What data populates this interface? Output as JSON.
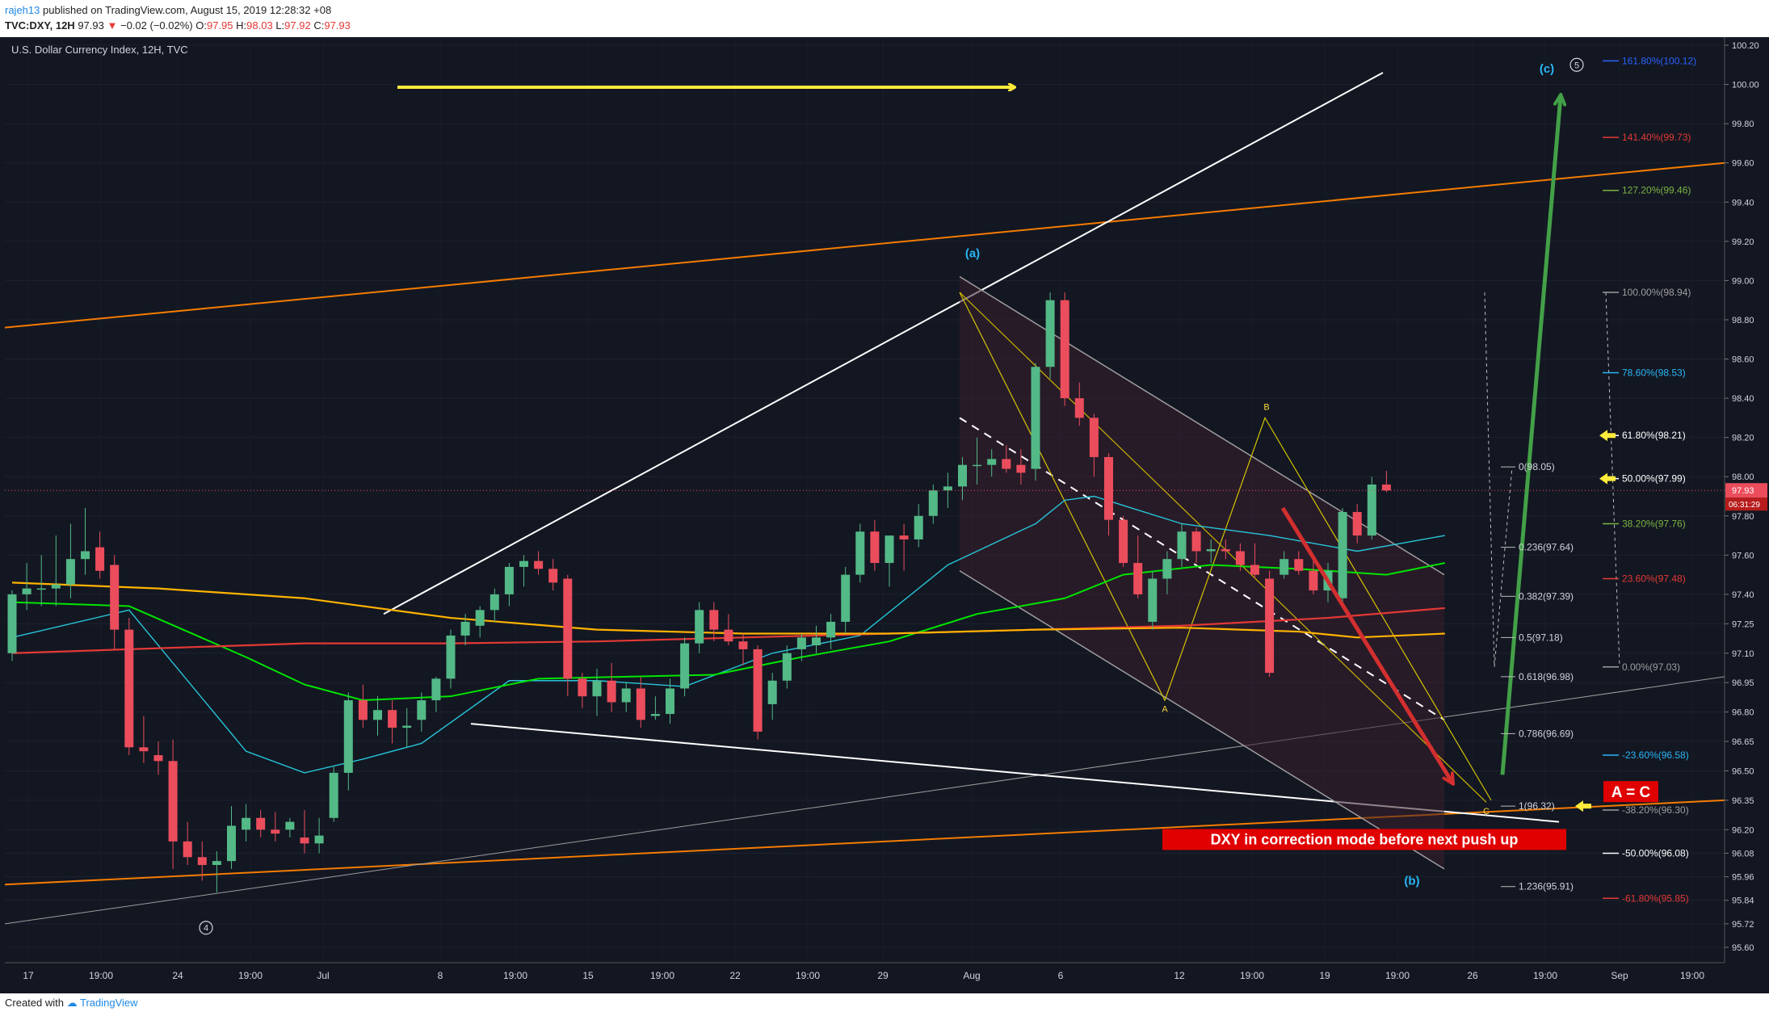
{
  "header": {
    "author": "rajeh13",
    "published": "published on TradingView.com, August 15, 2019 12:28:32 +08",
    "symbol": "TVC:DXY, 12H",
    "last": "97.93",
    "change": "−0.02 (−0.02%)",
    "o_label": "O:",
    "o": "97.95",
    "h_label": "H:",
    "h": "98.03",
    "l_label": "L:",
    "l": "97.92",
    "c_label": "C:",
    "c": "97.93"
  },
  "footer": {
    "created_with": "Created with",
    "brand": "TradingView"
  },
  "chart_data": {
    "type": "candlestick",
    "title": "U.S. Dollar Currency Index, 12H, TVC",
    "ylim": [
      95.6,
      100.2
    ],
    "y_ticks": [
      "100.20",
      "100.00",
      "99.80",
      "99.60",
      "99.40",
      "99.20",
      "99.00",
      "98.80",
      "98.60",
      "98.40",
      "98.20",
      "98.00",
      "97.80",
      "97.60",
      "97.40",
      "97.25",
      "97.10",
      "96.95",
      "96.80",
      "96.65",
      "96.50",
      "96.35",
      "96.20",
      "96.08",
      "95.96",
      "95.84",
      "95.72",
      "95.60"
    ],
    "x_ticks": [
      "17",
      "19:00",
      "24",
      "19:00",
      "Jul",
      "8",
      "19:00",
      "15",
      "19:00",
      "22",
      "19:00",
      "29",
      "Aug",
      "6",
      "12",
      "19:00",
      "19",
      "19:00",
      "26",
      "19:00",
      "Sep",
      "19:00"
    ],
    "price_marker": {
      "value": 97.93,
      "label": "97.93",
      "countdown": "06:31:29"
    },
    "candles": [
      {
        "o": 97.1,
        "h": 97.42,
        "l": 97.06,
        "c": 97.4
      },
      {
        "o": 97.4,
        "h": 97.56,
        "l": 97.32,
        "c": 97.43
      },
      {
        "o": 97.43,
        "h": 97.6,
        "l": 97.34,
        "c": 97.43
      },
      {
        "o": 97.43,
        "h": 97.7,
        "l": 97.34,
        "c": 97.45
      },
      {
        "o": 97.45,
        "h": 97.76,
        "l": 97.38,
        "c": 97.58
      },
      {
        "o": 97.58,
        "h": 97.84,
        "l": 97.5,
        "c": 97.62
      },
      {
        "o": 97.64,
        "h": 97.72,
        "l": 97.48,
        "c": 97.52
      },
      {
        "o": 97.55,
        "h": 97.6,
        "l": 97.12,
        "c": 97.22
      },
      {
        "o": 97.22,
        "h": 97.28,
        "l": 96.58,
        "c": 96.62
      },
      {
        "o": 96.62,
        "h": 96.78,
        "l": 96.54,
        "c": 96.6
      },
      {
        "o": 96.58,
        "h": 96.65,
        "l": 96.48,
        "c": 96.55
      },
      {
        "o": 96.55,
        "h": 96.66,
        "l": 96.0,
        "c": 96.14
      },
      {
        "o": 96.14,
        "h": 96.24,
        "l": 96.02,
        "c": 96.06
      },
      {
        "o": 96.06,
        "h": 96.14,
        "l": 95.94,
        "c": 96.02
      },
      {
        "o": 96.02,
        "h": 96.09,
        "l": 95.88,
        "c": 96.04
      },
      {
        "o": 96.04,
        "h": 96.32,
        "l": 96.0,
        "c": 96.22
      },
      {
        "o": 96.2,
        "h": 96.33,
        "l": 96.14,
        "c": 96.26
      },
      {
        "o": 96.26,
        "h": 96.3,
        "l": 96.16,
        "c": 96.2
      },
      {
        "o": 96.2,
        "h": 96.29,
        "l": 96.14,
        "c": 96.18
      },
      {
        "o": 96.2,
        "h": 96.26,
        "l": 96.16,
        "c": 96.24
      },
      {
        "o": 96.16,
        "h": 96.3,
        "l": 96.08,
        "c": 96.13
      },
      {
        "o": 96.13,
        "h": 96.26,
        "l": 96.08,
        "c": 96.17
      },
      {
        "o": 96.26,
        "h": 96.52,
        "l": 96.24,
        "c": 96.49
      },
      {
        "o": 96.49,
        "h": 96.9,
        "l": 96.4,
        "c": 96.86
      },
      {
        "o": 96.86,
        "h": 96.94,
        "l": 96.72,
        "c": 96.76
      },
      {
        "o": 96.76,
        "h": 96.88,
        "l": 96.68,
        "c": 96.81
      },
      {
        "o": 96.81,
        "h": 96.86,
        "l": 96.64,
        "c": 96.72
      },
      {
        "o": 96.72,
        "h": 96.82,
        "l": 96.62,
        "c": 96.73
      },
      {
        "o": 96.76,
        "h": 96.9,
        "l": 96.7,
        "c": 96.86
      },
      {
        "o": 96.86,
        "h": 96.98,
        "l": 96.8,
        "c": 96.97
      },
      {
        "o": 96.97,
        "h": 97.22,
        "l": 96.92,
        "c": 97.19
      },
      {
        "o": 97.19,
        "h": 97.3,
        "l": 97.14,
        "c": 97.26
      },
      {
        "o": 97.24,
        "h": 97.34,
        "l": 97.18,
        "c": 97.32
      },
      {
        "o": 97.32,
        "h": 97.43,
        "l": 97.26,
        "c": 97.4
      },
      {
        "o": 97.4,
        "h": 97.56,
        "l": 97.34,
        "c": 97.54
      },
      {
        "o": 97.54,
        "h": 97.6,
        "l": 97.44,
        "c": 97.57
      },
      {
        "o": 97.57,
        "h": 97.62,
        "l": 97.5,
        "c": 97.53
      },
      {
        "o": 97.53,
        "h": 97.58,
        "l": 97.42,
        "c": 97.46
      },
      {
        "o": 97.48,
        "h": 97.5,
        "l": 96.88,
        "c": 96.97
      },
      {
        "o": 96.97,
        "h": 97.0,
        "l": 96.82,
        "c": 96.88
      },
      {
        "o": 96.88,
        "h": 97.02,
        "l": 96.78,
        "c": 96.96
      },
      {
        "o": 96.96,
        "h": 97.05,
        "l": 96.8,
        "c": 96.85
      },
      {
        "o": 96.85,
        "h": 96.95,
        "l": 96.8,
        "c": 96.92
      },
      {
        "o": 96.92,
        "h": 96.98,
        "l": 96.72,
        "c": 96.76
      },
      {
        "o": 96.78,
        "h": 96.88,
        "l": 96.76,
        "c": 96.79
      },
      {
        "o": 96.79,
        "h": 96.97,
        "l": 96.74,
        "c": 96.92
      },
      {
        "o": 96.92,
        "h": 97.18,
        "l": 96.88,
        "c": 97.15
      },
      {
        "o": 97.15,
        "h": 97.36,
        "l": 97.1,
        "c": 97.32
      },
      {
        "o": 97.32,
        "h": 97.36,
        "l": 97.16,
        "c": 97.22
      },
      {
        "o": 97.22,
        "h": 97.3,
        "l": 97.14,
        "c": 97.16
      },
      {
        "o": 97.16,
        "h": 97.2,
        "l": 97.04,
        "c": 97.12
      },
      {
        "o": 97.12,
        "h": 97.14,
        "l": 96.66,
        "c": 96.7
      },
      {
        "o": 96.84,
        "h": 97.0,
        "l": 96.76,
        "c": 96.96
      },
      {
        "o": 96.96,
        "h": 97.14,
        "l": 96.92,
        "c": 97.1
      },
      {
        "o": 97.12,
        "h": 97.2,
        "l": 97.06,
        "c": 97.18
      },
      {
        "o": 97.14,
        "h": 97.24,
        "l": 97.1,
        "c": 97.18
      },
      {
        "o": 97.18,
        "h": 97.3,
        "l": 97.12,
        "c": 97.26
      },
      {
        "o": 97.26,
        "h": 97.54,
        "l": 97.2,
        "c": 97.5
      },
      {
        "o": 97.5,
        "h": 97.76,
        "l": 97.46,
        "c": 97.72
      },
      {
        "o": 97.72,
        "h": 97.78,
        "l": 97.52,
        "c": 97.56
      },
      {
        "o": 97.56,
        "h": 97.68,
        "l": 97.44,
        "c": 97.7
      },
      {
        "o": 97.7,
        "h": 97.76,
        "l": 97.52,
        "c": 97.68
      },
      {
        "o": 97.68,
        "h": 97.86,
        "l": 97.64,
        "c": 97.8
      },
      {
        "o": 97.8,
        "h": 97.96,
        "l": 97.76,
        "c": 97.93
      },
      {
        "o": 97.93,
        "h": 98.02,
        "l": 97.84,
        "c": 97.95
      },
      {
        "o": 97.95,
        "h": 98.1,
        "l": 97.88,
        "c": 98.06
      },
      {
        "o": 98.06,
        "h": 98.2,
        "l": 97.96,
        "c": 98.06
      },
      {
        "o": 98.06,
        "h": 98.14,
        "l": 98.0,
        "c": 98.09
      },
      {
        "o": 98.09,
        "h": 98.16,
        "l": 98.02,
        "c": 98.04
      },
      {
        "o": 98.06,
        "h": 98.14,
        "l": 97.96,
        "c": 98.02
      },
      {
        "o": 98.04,
        "h": 98.58,
        "l": 97.98,
        "c": 98.56
      },
      {
        "o": 98.56,
        "h": 98.94,
        "l": 98.5,
        "c": 98.9
      },
      {
        "o": 98.9,
        "h": 98.94,
        "l": 98.36,
        "c": 98.4
      },
      {
        "o": 98.4,
        "h": 98.48,
        "l": 98.26,
        "c": 98.3
      },
      {
        "o": 98.3,
        "h": 98.32,
        "l": 98.0,
        "c": 98.1
      },
      {
        "o": 98.1,
        "h": 98.12,
        "l": 97.7,
        "c": 97.78
      },
      {
        "o": 97.78,
        "h": 97.8,
        "l": 97.54,
        "c": 97.56
      },
      {
        "o": 97.56,
        "h": 97.7,
        "l": 97.38,
        "c": 97.4
      },
      {
        "o": 97.26,
        "h": 97.52,
        "l": 97.22,
        "c": 97.48
      },
      {
        "o": 97.48,
        "h": 97.62,
        "l": 97.4,
        "c": 97.58
      },
      {
        "o": 97.58,
        "h": 97.76,
        "l": 97.54,
        "c": 97.72
      },
      {
        "o": 97.72,
        "h": 97.74,
        "l": 97.56,
        "c": 97.62
      },
      {
        "o": 97.62,
        "h": 97.68,
        "l": 97.56,
        "c": 97.63
      },
      {
        "o": 97.63,
        "h": 97.68,
        "l": 97.58,
        "c": 97.62
      },
      {
        "o": 97.62,
        "h": 97.66,
        "l": 97.52,
        "c": 97.55
      },
      {
        "o": 97.55,
        "h": 97.66,
        "l": 97.48,
        "c": 97.5
      },
      {
        "o": 97.48,
        "h": 97.52,
        "l": 96.98,
        "c": 97.0
      },
      {
        "o": 97.5,
        "h": 97.62,
        "l": 97.48,
        "c": 97.58
      },
      {
        "o": 97.58,
        "h": 97.62,
        "l": 97.5,
        "c": 97.52
      },
      {
        "o": 97.52,
        "h": 97.6,
        "l": 97.4,
        "c": 97.42
      },
      {
        "o": 97.42,
        "h": 97.56,
        "l": 97.36,
        "c": 97.52
      },
      {
        "o": 97.38,
        "h": 97.84,
        "l": 97.34,
        "c": 97.82
      },
      {
        "o": 97.82,
        "h": 97.86,
        "l": 97.66,
        "c": 97.7
      },
      {
        "o": 97.7,
        "h": 98.0,
        "l": 97.68,
        "c": 97.96
      },
      {
        "o": 97.96,
        "h": 98.03,
        "l": 97.92,
        "c": 97.93
      }
    ],
    "moving_averages": [
      {
        "key": "cyan",
        "points": [
          [
            0,
            97.18
          ],
          [
            8,
            97.32
          ],
          [
            16,
            96.6
          ],
          [
            20,
            96.49
          ],
          [
            24,
            96.56
          ],
          [
            28,
            96.64
          ],
          [
            34,
            96.96
          ],
          [
            40,
            96.96
          ],
          [
            46,
            96.93
          ],
          [
            52,
            97.1
          ],
          [
            58,
            97.19
          ],
          [
            64,
            97.55
          ],
          [
            70,
            97.76
          ],
          [
            72,
            97.88
          ],
          [
            74,
            97.9
          ],
          [
            80,
            97.76
          ],
          [
            86,
            97.7
          ],
          [
            92,
            97.62
          ],
          [
            98,
            97.7
          ]
        ]
      },
      {
        "key": "green",
        "points": [
          [
            0,
            97.36
          ],
          [
            8,
            97.34
          ],
          [
            16,
            97.08
          ],
          [
            20,
            96.94
          ],
          [
            24,
            96.86
          ],
          [
            30,
            96.88
          ],
          [
            36,
            96.97
          ],
          [
            42,
            96.98
          ],
          [
            48,
            96.99
          ],
          [
            54,
            97.08
          ],
          [
            60,
            97.16
          ],
          [
            66,
            97.3
          ],
          [
            72,
            97.38
          ],
          [
            76,
            97.5
          ],
          [
            82,
            97.55
          ],
          [
            88,
            97.53
          ],
          [
            94,
            97.5
          ],
          [
            98,
            97.56
          ]
        ]
      },
      {
        "key": "red",
        "points": [
          [
            0,
            97.1
          ],
          [
            8,
            97.12
          ],
          [
            20,
            97.15
          ],
          [
            30,
            97.15
          ],
          [
            40,
            97.16
          ],
          [
            50,
            97.18
          ],
          [
            60,
            97.2
          ],
          [
            70,
            97.22
          ],
          [
            80,
            97.24
          ],
          [
            90,
            97.28
          ],
          [
            98,
            97.33
          ]
        ]
      },
      {
        "key": "orange",
        "points": [
          [
            0,
            97.46
          ],
          [
            10,
            97.43
          ],
          [
            20,
            97.38
          ],
          [
            30,
            97.28
          ],
          [
            40,
            97.22
          ],
          [
            50,
            97.2
          ],
          [
            60,
            97.2
          ],
          [
            70,
            97.22
          ],
          [
            80,
            97.23
          ],
          [
            88,
            97.21
          ],
          [
            92,
            97.18
          ],
          [
            98,
            97.2
          ]
        ]
      }
    ],
    "fib_left": [
      {
        "label": "0(98.05)",
        "value": 98.05
      },
      {
        "label": "0.236(97.64)",
        "value": 97.64
      },
      {
        "label": "0.382(97.39)",
        "value": 97.39
      },
      {
        "label": "0.5(97.18)",
        "value": 97.18
      },
      {
        "label": "0.618(96.98)",
        "value": 96.98
      },
      {
        "label": "0.786(96.69)",
        "value": 96.69
      },
      {
        "label": "1(96.32)",
        "value": 96.32
      },
      {
        "label": "1.236(95.91)",
        "value": 95.91
      }
    ],
    "fib_right": [
      {
        "label": "161.80%(100.12)",
        "value": 100.12,
        "color": "#2962ff"
      },
      {
        "label": "141.40%(99.73)",
        "value": 99.73,
        "color": "#e53935"
      },
      {
        "label": "127.20%(99.46)",
        "value": 99.46,
        "color": "#7cb342"
      },
      {
        "label": "100.00%(98.94)",
        "value": 98.94,
        "color": "#9e9e9e"
      },
      {
        "label": "78.60%(98.53)",
        "value": 98.53,
        "color": "#29b6f6"
      },
      {
        "label": "61.80%(98.21)",
        "value": 98.21,
        "color": "#ffffff"
      },
      {
        "label": "50.00%(97.99)",
        "value": 97.99,
        "color": "#ffffff"
      },
      {
        "label": "38.20%(97.76)",
        "value": 97.76,
        "color": "#7cb342"
      },
      {
        "label": "23.60%(97.48)",
        "value": 97.48,
        "color": "#e53935"
      },
      {
        "label": "0.00%(97.03)",
        "value": 97.03,
        "color": "#9e9e9e"
      },
      {
        "label": "-23.60%(96.58)",
        "value": 96.58,
        "color": "#29b6f6"
      },
      {
        "label": "-38.20%(96.30)",
        "value": 96.3,
        "color": "#9e9e9e"
      },
      {
        "label": "-50.00%(96.08)",
        "value": 96.08,
        "color": "#ffffff"
      },
      {
        "label": "-61.80%(95.85)",
        "value": 95.85,
        "color": "#e53935"
      }
    ],
    "annotations": {
      "wave_a": "(a)",
      "wave_b": "(b)",
      "wave_c": "(c)",
      "circle_4": "4",
      "circle_5": "5",
      "abc_a": "A",
      "abc_b": "B",
      "abc_c": "C",
      "a_equals_c": "A = C",
      "note": "DXY in correction mode before next push up"
    },
    "colors": {
      "background": "#131722",
      "up": "#53b987",
      "down": "#eb4d5c",
      "cyan_ma": "#26c6da",
      "green_ma": "#00e600",
      "red_ma": "#e53935",
      "orange_ma": "#ffb300",
      "trend_orange": "#f57c00",
      "label_red": "#e00000"
    }
  }
}
